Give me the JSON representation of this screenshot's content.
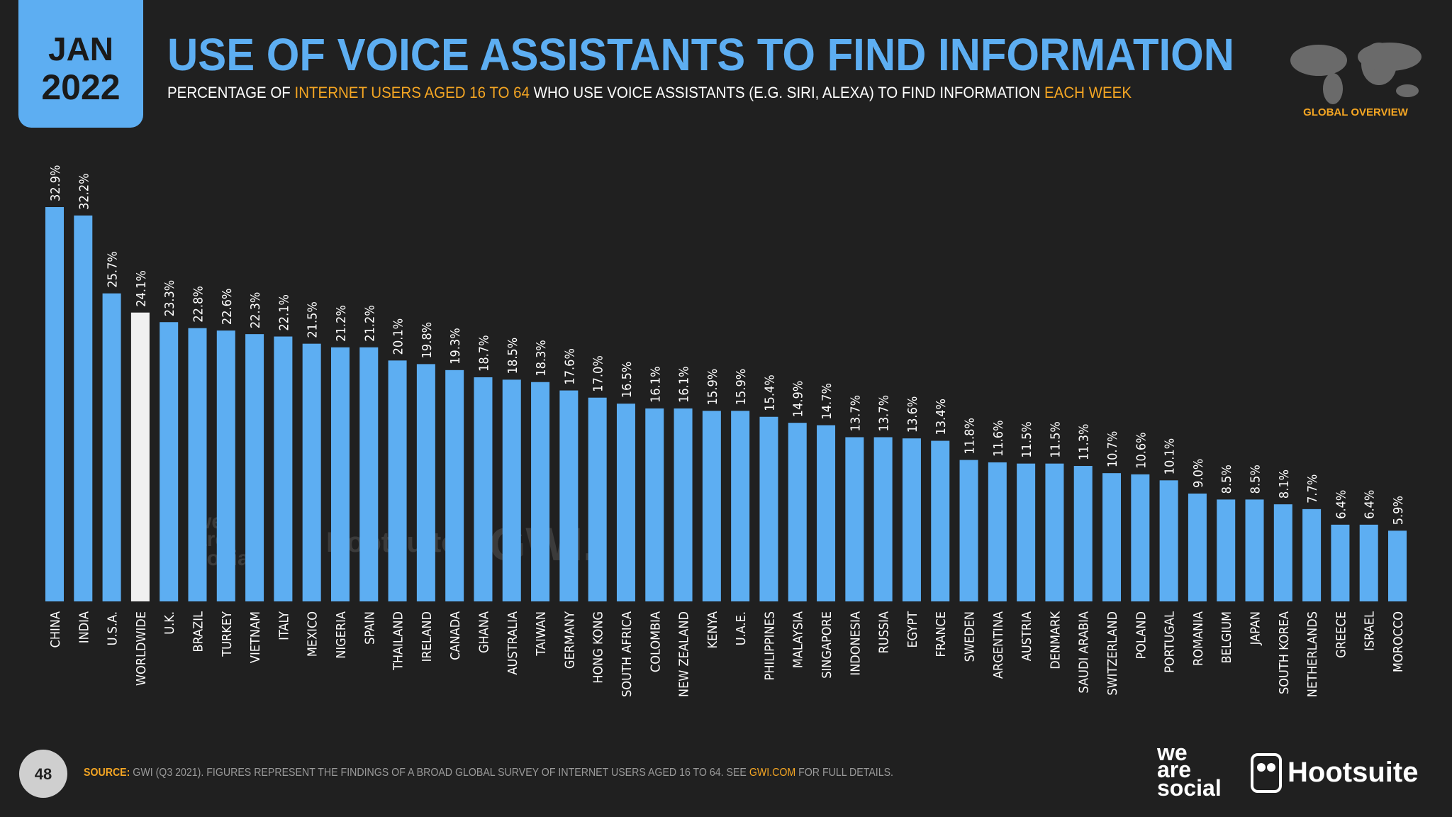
{
  "header": {
    "month": "JAN",
    "year": "2022",
    "badge": "GLOBAL OVERVIEW",
    "page_number": "48"
  },
  "chart_data": {
    "type": "bar",
    "title": "USE OF VOICE ASSISTANTS TO FIND INFORMATION",
    "subtitle": [
      {
        "text": "PERCENTAGE OF ",
        "color": "#ffffff"
      },
      {
        "text": "INTERNET USERS AGED 16 TO 64",
        "color": "#f5a623"
      },
      {
        "text": " WHO USE VOICE ASSISTANTS (E.G. SIRI, ALEXA) TO FIND INFORMATION ",
        "color": "#ffffff"
      },
      {
        "text": "EACH WEEK",
        "color": "#f5a623"
      }
    ],
    "categories": [
      "CHINA",
      "INDIA",
      "U.S.A.",
      "WORLDWIDE",
      "U.K.",
      "BRAZIL",
      "TURKEY",
      "VIETNAM",
      "ITALY",
      "MEXICO",
      "NIGERIA",
      "SPAIN",
      "THAILAND",
      "IRELAND",
      "CANADA",
      "GHANA",
      "AUSTRALIA",
      "TAIWAN",
      "GERMANY",
      "HONG KONG",
      "SOUTH AFRICA",
      "COLOMBIA",
      "NEW ZEALAND",
      "KENYA",
      "U.A.E.",
      "PHILIPPINES",
      "MALAYSIA",
      "SINGAPORE",
      "INDONESIA",
      "RUSSIA",
      "EGYPT",
      "FRANCE",
      "SWEDEN",
      "ARGENTINA",
      "AUSTRIA",
      "DENMARK",
      "SAUDI ARABIA",
      "SWITZERLAND",
      "POLAND",
      "PORTUGAL",
      "ROMANIA",
      "BELGIUM",
      "JAPAN",
      "SOUTH KOREA",
      "NETHERLANDS",
      "GREECE",
      "ISRAEL",
      "MOROCCO"
    ],
    "values": [
      32.9,
      32.2,
      25.7,
      24.1,
      23.3,
      22.8,
      22.6,
      22.3,
      22.1,
      21.5,
      21.2,
      21.2,
      20.1,
      19.8,
      19.3,
      18.7,
      18.5,
      18.3,
      17.6,
      17.0,
      16.5,
      16.1,
      16.1,
      15.9,
      15.9,
      15.4,
      14.9,
      14.7,
      13.7,
      13.7,
      13.6,
      13.4,
      11.8,
      11.6,
      11.5,
      11.5,
      11.3,
      10.7,
      10.6,
      10.1,
      9.0,
      8.5,
      8.5,
      8.1,
      7.7,
      6.4,
      6.4,
      5.9
    ],
    "value_labels": [
      "32.9%",
      "32.2%",
      "25.7%",
      "24.1%",
      "23.3%",
      "22.8%",
      "22.6%",
      "22.3%",
      "22.1%",
      "21.5%",
      "21.2%",
      "21.2%",
      "20.1%",
      "19.8%",
      "19.3%",
      "18.7%",
      "18.5%",
      "18.3%",
      "17.6%",
      "17.0%",
      "16.5%",
      "16.1%",
      "16.1%",
      "15.9%",
      "15.9%",
      "15.4%",
      "14.9%",
      "14.7%",
      "13.7%",
      "13.7%",
      "13.6%",
      "13.4%",
      "11.8%",
      "11.6%",
      "11.5%",
      "11.5%",
      "11.3%",
      "10.7%",
      "10.6%",
      "10.1%",
      "9.0%",
      "8.5%",
      "8.5%",
      "8.1%",
      "7.7%",
      "6.4%",
      "6.4%",
      "5.9%"
    ],
    "colors": [
      "#5daef2",
      "#5daef2",
      "#5daef2",
      "#f0f0f0",
      "#5daef2",
      "#5daef2",
      "#5daef2",
      "#5daef2",
      "#5daef2",
      "#5daef2",
      "#5daef2",
      "#5daef2",
      "#5daef2",
      "#5daef2",
      "#5daef2",
      "#5daef2",
      "#5daef2",
      "#5daef2",
      "#5daef2",
      "#5daef2",
      "#5daef2",
      "#5daef2",
      "#5daef2",
      "#5daef2",
      "#5daef2",
      "#5daef2",
      "#5daef2",
      "#5daef2",
      "#5daef2",
      "#5daef2",
      "#5daef2",
      "#5daef2",
      "#5daef2",
      "#5daef2",
      "#5daef2",
      "#5daef2",
      "#5daef2",
      "#5daef2",
      "#5daef2",
      "#5daef2",
      "#5daef2",
      "#5daef2",
      "#5daef2",
      "#5daef2",
      "#5daef2",
      "#5daef2",
      "#5daef2",
      "#5daef2"
    ]
  },
  "footer": {
    "source": [
      {
        "text": "SOURCE: ",
        "color": "#f5a623"
      },
      {
        "text": "GWI (Q3 2021). FIGURES REPRESENT THE FINDINGS OF A BROAD GLOBAL SURVEY OF INTERNET USERS AGED 16 TO 64. SEE ",
        "color": "#9a9a9a"
      },
      {
        "text": "GWI.COM",
        "color": "#f5a623"
      },
      {
        "text": " FOR FULL DETAILS.",
        "color": "#9a9a9a"
      }
    ],
    "logo_lines": [
      "we",
      "are",
      "social"
    ],
    "hootsuite": "Hootsuite"
  },
  "watermark": [
    "we",
    "are",
    "social",
    "Hootsuite",
    "GWI."
  ]
}
